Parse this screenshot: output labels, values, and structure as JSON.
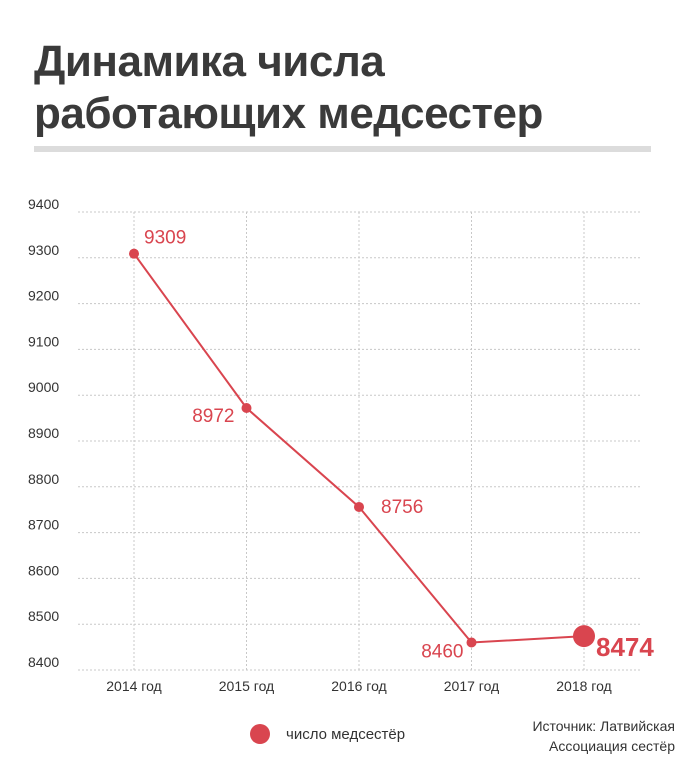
{
  "header": {
    "title_line1": "Динамика числа",
    "title_line2": "работающих медсестер"
  },
  "chart_data": {
    "type": "line",
    "title": "Динамика числа работающих медсестер",
    "xlabel": "",
    "ylabel": "",
    "categories": [
      "2014 год",
      "2015 год",
      "2016 год",
      "2017 год",
      "2018 год"
    ],
    "series": [
      {
        "name": "число медсестёр",
        "values": [
          9309,
          8972,
          8756,
          8460,
          8474
        ],
        "color": "#d9454f"
      }
    ],
    "ylim": [
      8400,
      9400
    ],
    "yticks": [
      9400,
      9300,
      9200,
      9100,
      9000,
      8900,
      8800,
      8700,
      8600,
      8500,
      8400
    ],
    "grid": true,
    "legend_position": "bottom",
    "highlight_last": true
  },
  "legend": {
    "label": "число медсестёр"
  },
  "source": {
    "line1": "Источник: Латвийская",
    "line2": "Ассоциация сестёр"
  }
}
